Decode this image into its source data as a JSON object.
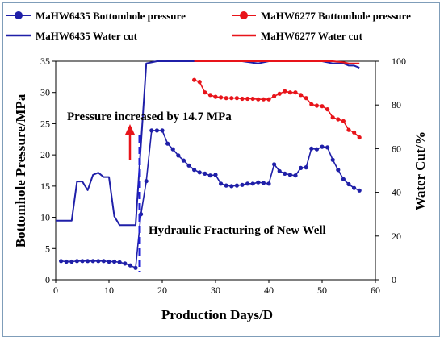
{
  "chart_data": {
    "type": "line",
    "xlabel": "Production Days/D",
    "ylabel": "Bottomhole Pressure/MPa",
    "y2label": "Water Cut/%",
    "xlim": [
      0,
      60
    ],
    "ylim": [
      0,
      35
    ],
    "y2lim": [
      0,
      100
    ],
    "x_ticks": [
      "0",
      "10",
      "20",
      "30",
      "40",
      "50",
      "60"
    ],
    "y_ticks": [
      "0",
      "5",
      "10",
      "15",
      "20",
      "25",
      "30",
      "35"
    ],
    "y2_ticks": [
      "0",
      "20",
      "40",
      "60",
      "80",
      "100"
    ],
    "grid": false,
    "legend_placement": "top",
    "annotations": {
      "pressure_increase": "Pressure increased by 14.7 MPa",
      "fracturing": "Hydraulic Fracturing of New Well"
    },
    "series": [
      {
        "name": "MaHW6435  Bottomhole pressure",
        "axis": "left",
        "color": "#1f1fa8",
        "marker": "circle",
        "x": [
          1,
          2,
          3,
          4,
          5,
          6,
          7,
          8,
          9,
          10,
          11,
          12,
          13,
          14,
          15,
          16,
          17,
          18,
          19,
          20,
          21,
          22,
          23,
          24,
          25,
          26,
          27,
          28,
          29,
          30,
          31,
          32,
          33,
          34,
          35,
          36,
          37,
          38,
          39,
          40,
          41,
          42,
          43,
          44,
          45,
          46,
          47,
          48,
          49,
          50,
          51,
          52,
          53,
          54,
          55,
          56,
          57
        ],
        "y": [
          3.0,
          2.9,
          2.9,
          3.0,
          3.0,
          3.0,
          3.0,
          3.0,
          3.0,
          2.9,
          2.9,
          2.8,
          2.6,
          2.3,
          1.9,
          10.5,
          15.8,
          23.9,
          23.9,
          23.9,
          21.8,
          20.9,
          19.9,
          19.1,
          18.3,
          17.6,
          17.2,
          17.0,
          16.7,
          16.8,
          15.4,
          15.1,
          15.0,
          15.1,
          15.2,
          15.4,
          15.4,
          15.6,
          15.5,
          15.4,
          18.5,
          17.4,
          17.0,
          16.8,
          16.7,
          17.9,
          18.0,
          21.0,
          20.9,
          21.3,
          21.2,
          19.2,
          17.6,
          16.1,
          15.3,
          14.7,
          14.3
        ]
      },
      {
        "name": "MaHW6435  Water cut",
        "axis": "right",
        "color": "#1f1fa8",
        "marker": "none",
        "x": [
          0,
          1,
          2,
          3,
          4,
          5,
          6,
          7,
          8,
          9,
          10,
          11,
          12,
          13,
          14,
          15,
          17,
          18,
          19,
          20,
          25,
          30,
          35,
          38,
          40,
          45,
          50,
          52,
          54,
          55,
          56,
          57
        ],
        "y": [
          27,
          27,
          27,
          27,
          45,
          45,
          41,
          48,
          49,
          47,
          47,
          29,
          25,
          25,
          25,
          25,
          99,
          99.5,
          100,
          100,
          100,
          100,
          100,
          99,
          100,
          100,
          100,
          99,
          99,
          98,
          98,
          97
        ]
      },
      {
        "name": "MaHW6277  Bottomhole pressure",
        "axis": "left",
        "color": "#e8141a",
        "marker": "circle",
        "x": [
          26,
          27,
          28,
          29,
          30,
          31,
          32,
          33,
          34,
          35,
          36,
          37,
          38,
          39,
          40,
          41,
          42,
          43,
          44,
          45,
          46,
          47,
          48,
          49,
          50,
          51,
          52,
          53,
          54,
          55,
          56,
          57
        ],
        "y": [
          32.0,
          31.7,
          30.0,
          29.6,
          29.3,
          29.2,
          29.1,
          29.1,
          29.1,
          29.0,
          29.0,
          29.0,
          28.9,
          28.9,
          28.9,
          29.4,
          29.8,
          30.2,
          30.0,
          30.0,
          29.6,
          29.1,
          28.1,
          27.9,
          27.8,
          27.3,
          26.0,
          25.7,
          25.4,
          24.0,
          23.6,
          22.8
        ]
      },
      {
        "name": "MaHW6277  Water cut",
        "axis": "right",
        "color": "#e8141a",
        "marker": "none",
        "x": [
          26,
          30,
          35,
          40,
          45,
          50,
          52,
          54,
          55,
          56,
          57
        ],
        "y": [
          100,
          100,
          100,
          100,
          100,
          100,
          100,
          99.5,
          99,
          99,
          99
        ]
      }
    ]
  }
}
